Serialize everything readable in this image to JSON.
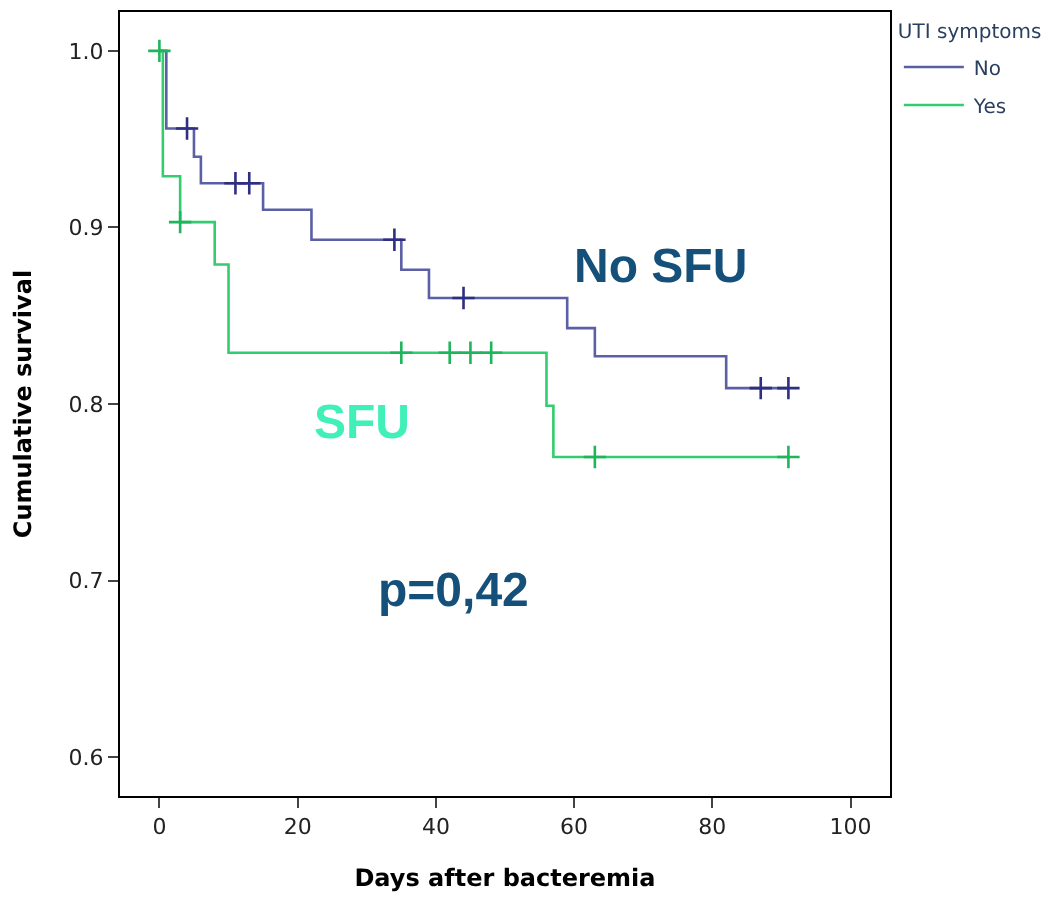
{
  "chart_data": {
    "type": "step",
    "xlabel": "Days after bacteremia",
    "ylabel": "Cumulative survival",
    "legend_title": "UTI symptoms",
    "legend": "top right",
    "xlim": [
      -5.7,
      105.7
    ],
    "xticks": [
      0,
      20,
      40,
      60,
      80,
      100
    ],
    "ylim": [
      0.578,
      1.022
    ],
    "yticks": [
      {
        "value": 0.6,
        "label": "0.6"
      },
      {
        "value": 0.7,
        "label": "0.7"
      },
      {
        "value": 0.8,
        "label": "0.8"
      },
      {
        "value": 0.9,
        "label": "0.9"
      },
      {
        "value": 1,
        "label": "1.0"
      }
    ],
    "series": [
      {
        "name": "No",
        "color": "#5a5fa6",
        "x": [
          0,
          1,
          5,
          6,
          15,
          22,
          35,
          39,
          59,
          63,
          82,
          91
        ],
        "values": [
          1,
          0.956,
          0.94,
          0.925,
          0.91,
          0.893,
          0.876,
          0.86,
          0.843,
          0.827,
          0.809,
          0.809
        ]
      },
      {
        "name": "Yes",
        "color": "#33cc70",
        "x": [
          0,
          0.5,
          3,
          8,
          10,
          56,
          57,
          91
        ],
        "values": [
          1,
          0.929,
          0.903,
          0.879,
          0.829,
          0.799,
          0.77,
          0.77
        ]
      },
      {
        "type": "scatter",
        "marker": "cross",
        "color": "#2e2f80",
        "x": [
          4,
          11,
          13,
          34,
          44,
          87,
          91
        ],
        "values": [
          0.956,
          0.925,
          0.925,
          0.893,
          0.86,
          0.809,
          0.809
        ]
      },
      {
        "type": "scatter",
        "marker": "cross",
        "color": "#1fb55a",
        "x": [
          0,
          3,
          35,
          42,
          45,
          48,
          63,
          91
        ],
        "values": [
          1,
          0.903,
          0.829,
          0.829,
          0.829,
          0.829,
          0.77,
          0.77
        ]
      }
    ],
    "annotations": [
      "No SFU",
      "SFU",
      "p=0,42"
    ]
  }
}
